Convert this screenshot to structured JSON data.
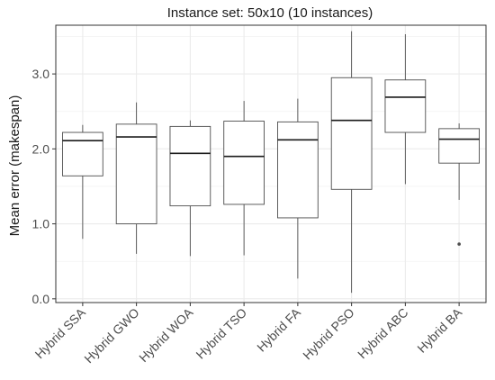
{
  "chart_data": {
    "type": "boxplot",
    "title": "Instance set: 50x10 (10 instances)",
    "xlabel": "",
    "ylabel": "Mean error (makespan)",
    "ylim": [
      -0.05,
      3.65
    ],
    "yticks": [
      0.0,
      1.0,
      2.0,
      3.0
    ],
    "ytick_labels": [
      "0.0",
      "1.0",
      "2.0",
      "3.0"
    ],
    "grid": true,
    "categories": [
      "Hybrid SSA",
      "Hybrid GWO",
      "Hybrid WOA",
      "Hybrid TSO",
      "Hybrid FA",
      "Hybrid PSO",
      "Hybrid ABC",
      "Hybrid BA"
    ],
    "boxes": [
      {
        "category": "Hybrid SSA",
        "min": 0.8,
        "q1": 1.64,
        "median": 2.11,
        "q3": 2.22,
        "max": 2.32,
        "outliers": []
      },
      {
        "category": "Hybrid GWO",
        "min": 0.6,
        "q1": 1.0,
        "median": 2.16,
        "q3": 2.33,
        "max": 2.62,
        "outliers": []
      },
      {
        "category": "Hybrid WOA",
        "min": 0.57,
        "q1": 1.24,
        "median": 1.94,
        "q3": 2.3,
        "max": 2.38,
        "outliers": []
      },
      {
        "category": "Hybrid TSO",
        "min": 0.58,
        "q1": 1.26,
        "median": 1.9,
        "q3": 2.37,
        "max": 2.64,
        "outliers": []
      },
      {
        "category": "Hybrid FA",
        "min": 0.27,
        "q1": 1.08,
        "median": 2.12,
        "q3": 2.36,
        "max": 2.67,
        "outliers": []
      },
      {
        "category": "Hybrid PSO",
        "min": 0.08,
        "q1": 1.46,
        "median": 2.38,
        "q3": 2.95,
        "max": 3.57,
        "outliers": []
      },
      {
        "category": "Hybrid ABC",
        "min": 1.53,
        "q1": 2.22,
        "median": 2.69,
        "q3": 2.92,
        "max": 3.53,
        "outliers": []
      },
      {
        "category": "Hybrid BA",
        "min": 1.32,
        "q1": 1.81,
        "median": 2.13,
        "q3": 2.27,
        "max": 2.34,
        "outliers": [
          0.73
        ]
      }
    ]
  }
}
